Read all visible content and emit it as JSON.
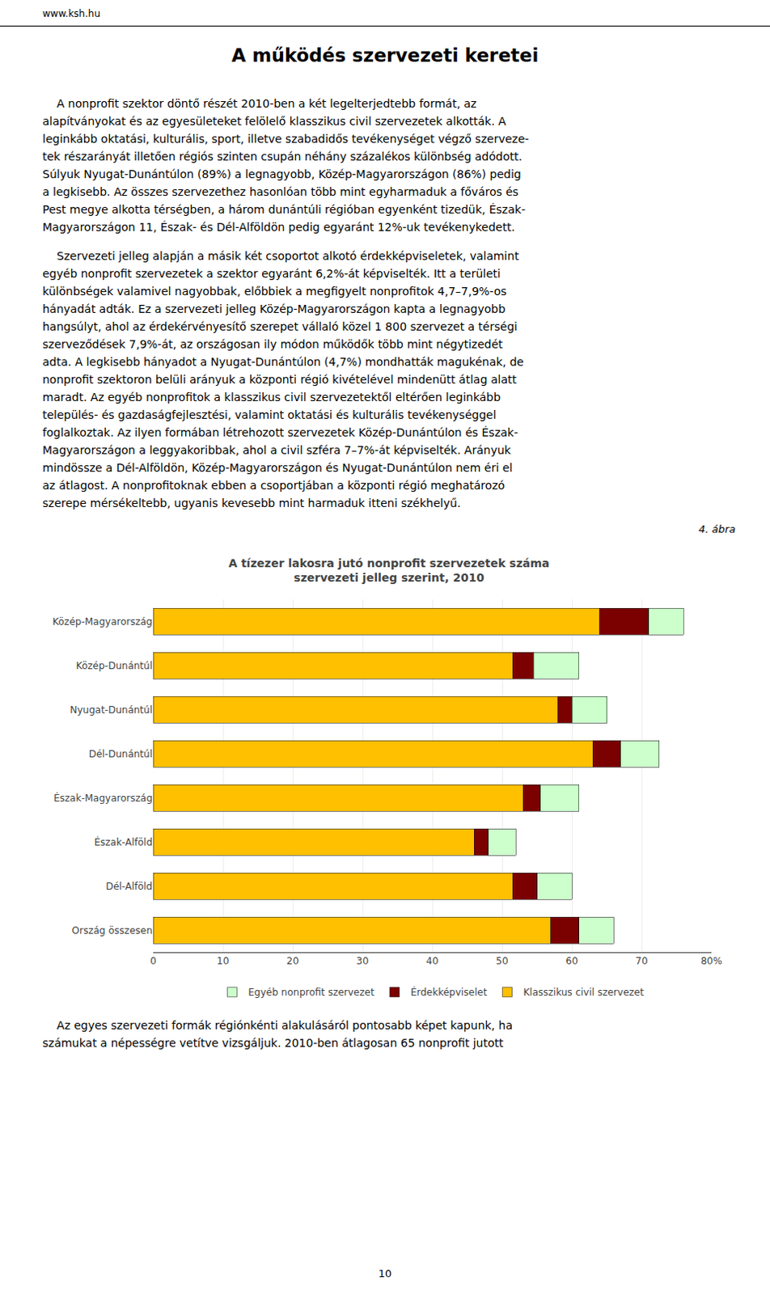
{
  "header": "www.ksh.hu",
  "page_title": "A működés szervezeti keretei",
  "paragraphs": [
    [
      "    A nonprofit szektor döntő részét 2010-ben a két legelterjedtebb formát, az",
      "alapítványokat és az egyesületeket felölelő klasszikus civil szervezetek alkották. A",
      "leginkább oktatási, kulturális, sport, illetve szabadidős tevékenységet végző szerveze-",
      "tek részarányát illetően régiós szinten csupán néhány százalékos különbség adódott.",
      "Súlyuk Nyugat-Dunántúlon (89%) a legnagyobb, Közép-Magyarországon (86%) pedig",
      "a legkisebb. Az összes szervezethez hasonlóan több mint egyharmaduk a főváros és",
      "Pest megye alkotta térségben, a három dunántúli régióban egyenként tizedük, Észak-",
      "Magyarországon 11, Észak- és Dél-Alföldön pedig egyaránt 12%-uk tevékenykedett."
    ],
    [
      "    Szervezeti jelleg alapján a másik két csoportot alkotó érdekképviseletek, valamint",
      "egyéb nonprofit szervezetek a szektor egyaránt 6,2%-át képviselték. Itt a területi",
      "különbségek valamivel nagyobbak, előbbiek a megfigyelt nonprofitok 4,7–7,9%-os",
      "hányadát adták. Ez a szervezeti jelleg Közép-Magyarországon kapta a legnagyobb",
      "hangsúlyt, ahol az érdekérvényesítő szerepet vállaló közel 1 800 szervezet a térségi",
      "szerveződések 7,9%-át, az országosan ily módon működők több mint négytizedét",
      "adta. A legkisebb hányadot a Nyugat-Dunántúlon (4,7%) mondhatták magukénak, de",
      "nonprofit szektoron belüli arányuk a központi régió kivételével mindenütt átlag alatt",
      "maradt. Az egyéb nonprofitok a klasszikus civil szervezetektől eltérően leginkább",
      "település- és gazdaságfejlesztési, valamint oktatási és kulturális tevékenységgel",
      "foglalkoztak. Az ilyen formában létrehozott szervezetek Közép-Dunántúlon és Észak-",
      "Magyarországon a leggyakoribbak, ahol a civil szféra 7–7%-át képviselték. Arányuk",
      "mindössze a Dél-Alföldön, Közép-Magyarországon és Nyugat-Dunántúlon nem éri el",
      "az átlagost. A nonprofitoknak ebben a csoportjában a központi régió meghatározó",
      "szerepe mérsékeltebb, ugyanis kevesebb mint harmaduk itteni székhelyű."
    ]
  ],
  "bottom_text": [
    "    Az egyes szervezeti formák régiónkénti alakulásáról pontosabb képet kapunk, ha",
    "számukat a népességre vetítve vizsgáljuk. 2010-ben átlagosan 65 nonprofit jutott"
  ],
  "page_number": "10",
  "chart_data": {
    "type": "bar",
    "orientation": "horizontal",
    "stacked": true,
    "note": "4. ábra",
    "title": "A tízezer lakosra jutó nonprofit szervezetek száma",
    "subtitle": "szervezeti jelleg szerint, 2010",
    "categories": [
      "Közép-Magyarország",
      "Közép-Dunántúl",
      "Nyugat-Dunántúl",
      "Dél-Dunántúl",
      "Észak-Magyarország",
      "Észak-Alföld",
      "Dél-Alföld",
      "Ország összesen"
    ],
    "series": [
      {
        "name": "Klasszikus civil szervezet",
        "color": "#FFC000",
        "values": [
          64.0,
          51.5,
          58.0,
          63.0,
          53.0,
          46.0,
          51.5,
          57.0
        ]
      },
      {
        "name": "Érdekképviselet",
        "color": "#7B0000",
        "values": [
          7.0,
          3.0,
          2.0,
          4.0,
          2.5,
          2.0,
          3.5,
          4.0
        ]
      },
      {
        "name": "Egyéb nonprofit szervezet",
        "color": "#CCFFCC",
        "values": [
          5.0,
          6.5,
          5.0,
          5.5,
          5.5,
          4.0,
          5.0,
          5.0
        ]
      }
    ],
    "xlim": [
      0,
      80
    ],
    "xticks": [
      0,
      10,
      20,
      30,
      40,
      50,
      60,
      70,
      {
        "value": 80,
        "label": "80%"
      }
    ],
    "grid": true,
    "legend": "bottom"
  }
}
